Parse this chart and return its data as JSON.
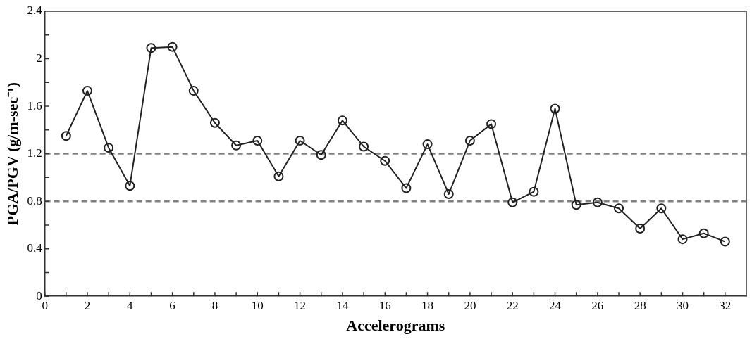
{
  "chart_data": {
    "type": "line",
    "xlabel": "Accelerograms",
    "ylabel": "PGA/PGV (g/m-sec⁻¹)",
    "x": [
      1,
      2,
      3,
      4,
      5,
      6,
      7,
      8,
      9,
      10,
      11,
      12,
      13,
      14,
      15,
      16,
      17,
      18,
      19,
      20,
      21,
      22,
      23,
      24,
      25,
      26,
      27,
      28,
      29,
      30,
      31,
      32
    ],
    "series": [
      {
        "color": "#222222",
        "values": [
          1.35,
          1.73,
          1.25,
          0.93,
          2.09,
          2.1,
          1.73,
          1.46,
          1.27,
          1.31,
          1.01,
          1.31,
          1.19,
          1.48,
          1.26,
          1.14,
          0.91,
          1.28,
          0.86,
          1.31,
          1.45,
          0.79,
          0.88,
          1.58,
          0.77,
          0.79,
          0.74,
          0.57,
          0.74,
          0.48,
          0.53,
          0.46
        ]
      }
    ],
    "marker": "circle",
    "line_style": "solid",
    "xlim": [
      0,
      33
    ],
    "xticks": [
      0,
      {
        "value": 1,
        "label": null
      },
      2,
      {
        "value": 3,
        "label": null
      },
      4,
      {
        "value": 5,
        "label": null
      },
      6,
      {
        "value": 7,
        "label": null
      },
      8,
      {
        "value": 9,
        "label": null
      },
      10,
      {
        "value": 11,
        "label": null
      },
      12,
      {
        "value": 13,
        "label": null
      },
      14,
      {
        "value": 15,
        "label": null
      },
      16,
      {
        "value": 17,
        "label": null
      },
      18,
      {
        "value": 19,
        "label": null
      },
      20,
      {
        "value": 21,
        "label": null
      },
      22,
      {
        "value": 23,
        "label": null
      },
      24,
      {
        "value": 25,
        "label": null
      },
      26,
      {
        "value": 27,
        "label": null
      },
      28,
      {
        "value": 29,
        "label": null
      },
      30,
      {
        "value": 31,
        "label": null
      },
      32
    ],
    "ylim": [
      0,
      2.4
    ],
    "yticks": [
      0,
      {
        "value": 0.2,
        "label": null
      },
      0.4,
      {
        "value": 0.6,
        "label": null
      },
      0.8,
      {
        "value": 1,
        "label": null
      },
      1.2,
      {
        "value": 1.4,
        "label": null
      },
      1.6,
      {
        "value": 1.8,
        "label": null
      },
      2,
      {
        "value": 2.2,
        "label": null
      },
      2.4
    ],
    "ref_lines": [
      {
        "axis": "y",
        "value": 1.2,
        "color": "#808080",
        "line_style": "dashed"
      },
      {
        "axis": "y",
        "value": 0.8,
        "color": "#808080",
        "line_style": "dashed"
      }
    ]
  }
}
